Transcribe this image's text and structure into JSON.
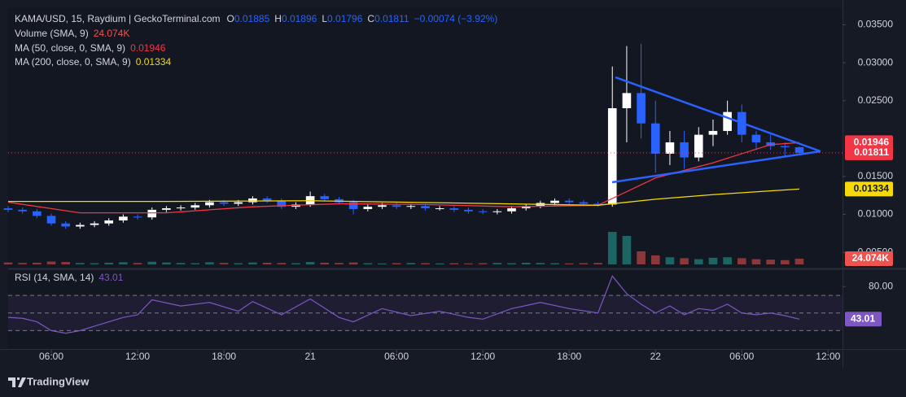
{
  "chart_data": [
    {
      "type": "candlestick",
      "title": "KAMA/USD, 15, Raydium | GeckoTerminal.com",
      "ohlc_letters": [
        "O",
        "H",
        "L",
        "C"
      ],
      "change": "−0.00074 (−3.92%)",
      "x": [
        3,
        4,
        5,
        6,
        7,
        8,
        9,
        10,
        11,
        12,
        13,
        14,
        15,
        16,
        17,
        18,
        19,
        20,
        21,
        22,
        23,
        24,
        25,
        26,
        27,
        28,
        29,
        30,
        31,
        32,
        33,
        34,
        35,
        36,
        37,
        38,
        39,
        40,
        41,
        42,
        43,
        44,
        45,
        46,
        47,
        48,
        49,
        50,
        51,
        52,
        53,
        54,
        55,
        56,
        57,
        58
      ],
      "open": [
        0.0108,
        0.0106,
        0.0104,
        0.0098,
        0.0088,
        0.0084,
        0.0086,
        0.0088,
        0.0092,
        0.0097,
        0.0096,
        0.0106,
        0.0108,
        0.0109,
        0.0112,
        0.0116,
        0.0114,
        0.0116,
        0.0121,
        0.0118,
        0.011,
        0.0113,
        0.0124,
        0.012,
        0.0116,
        0.0107,
        0.011,
        0.0112,
        0.011,
        0.0111,
        0.0108,
        0.0108,
        0.0106,
        0.0104,
        0.0103,
        0.0104,
        0.0108,
        0.0111,
        0.0115,
        0.0118,
        0.0116,
        0.0114,
        0.0113,
        0.024,
        0.026,
        0.022,
        0.018,
        0.0195,
        0.0175,
        0.0205,
        0.021,
        0.0235,
        0.0205,
        0.0195,
        0.019,
        0.01885
      ],
      "high": [
        0.0111,
        0.0109,
        0.0107,
        0.0101,
        0.0091,
        0.0089,
        0.0091,
        0.0095,
        0.01,
        0.01,
        0.0109,
        0.0111,
        0.0112,
        0.0115,
        0.0119,
        0.0119,
        0.0119,
        0.0124,
        0.0124,
        0.0121,
        0.0116,
        0.013,
        0.0127,
        0.0123,
        0.0119,
        0.0113,
        0.0115,
        0.0115,
        0.0114,
        0.0114,
        0.0111,
        0.0111,
        0.0109,
        0.0107,
        0.0107,
        0.0111,
        0.0114,
        0.0118,
        0.0121,
        0.0121,
        0.0119,
        0.0117,
        0.0295,
        0.0322,
        0.0325,
        0.025,
        0.021,
        0.021,
        0.0215,
        0.0225,
        0.025,
        0.0245,
        0.021,
        0.0205,
        0.0195,
        0.01896
      ],
      "low": [
        0.0103,
        0.0101,
        0.0095,
        0.0085,
        0.0081,
        0.0081,
        0.0083,
        0.0085,
        0.0089,
        0.0093,
        0.0093,
        0.0103,
        0.0105,
        0.0106,
        0.0109,
        0.0111,
        0.0111,
        0.0113,
        0.0115,
        0.0107,
        0.0107,
        0.011,
        0.0117,
        0.0113,
        0.01,
        0.0104,
        0.0107,
        0.0107,
        0.0107,
        0.0105,
        0.0105,
        0.0103,
        0.0101,
        0.01,
        0.01,
        0.0101,
        0.0105,
        0.0108,
        0.0112,
        0.0113,
        0.0111,
        0.011,
        0.011,
        0.0195,
        0.02,
        0.0155,
        0.0165,
        0.016,
        0.017,
        0.019,
        0.0205,
        0.0195,
        0.0185,
        0.0185,
        0.0177,
        0.01796
      ],
      "close": [
        0.0106,
        0.0104,
        0.0098,
        0.0088,
        0.0084,
        0.0086,
        0.0088,
        0.0092,
        0.0097,
        0.0096,
        0.0106,
        0.0108,
        0.0109,
        0.0112,
        0.0116,
        0.0114,
        0.0116,
        0.0121,
        0.0118,
        0.011,
        0.0113,
        0.0124,
        0.012,
        0.0116,
        0.0107,
        0.011,
        0.0112,
        0.011,
        0.0111,
        0.0108,
        0.0108,
        0.0106,
        0.0104,
        0.0103,
        0.0104,
        0.0108,
        0.0111,
        0.0115,
        0.0118,
        0.0116,
        0.0114,
        0.0113,
        0.024,
        0.026,
        0.022,
        0.018,
        0.0195,
        0.0175,
        0.0205,
        0.021,
        0.0235,
        0.0205,
        0.0195,
        0.019,
        0.01885,
        0.01811
      ],
      "up_color": "#ffffff",
      "down_color": "#2962ff",
      "xlim": [
        3,
        61
      ],
      "xticks": [
        {
          "value": 6,
          "label": "06:00"
        },
        {
          "value": 12,
          "label": "12:00"
        },
        {
          "value": 18,
          "label": "18:00"
        },
        {
          "value": 24,
          "label": "21"
        },
        {
          "value": 30,
          "label": "06:00"
        },
        {
          "value": 36,
          "label": "12:00"
        },
        {
          "value": 42,
          "label": "18:00"
        },
        {
          "value": 48,
          "label": "22"
        },
        {
          "value": 54,
          "label": "06:00"
        },
        {
          "value": 60,
          "label": "12:00"
        }
      ],
      "ylim": [
        0.0034,
        0.0372
      ],
      "yticks": [
        {
          "value": 0.035,
          "label": "0.03500"
        },
        {
          "value": 0.03,
          "label": "0.03000"
        },
        {
          "value": 0.025,
          "label": "0.02500"
        },
        {
          "value": 0.015,
          "label": "0.01500"
        },
        {
          "value": 0.01,
          "label": "0.01000"
        },
        {
          "value": 0.005,
          "label": "0.00500"
        }
      ],
      "volume": {
        "name": "Volume (SMA, 9)",
        "last_label": "24.074K",
        "ylim": [
          0,
          1080000
        ],
        "up_color": "#26a69a",
        "down_color": "#ef5350",
        "values": [
          8000,
          6000,
          7000,
          12000,
          10000,
          6000,
          5000,
          7000,
          9000,
          6000,
          11000,
          8000,
          6000,
          5000,
          9000,
          6000,
          5000,
          8000,
          7000,
          6000,
          5000,
          10000,
          7000,
          6000,
          8000,
          5000,
          4000,
          5000,
          6000,
          5000,
          4000,
          5000,
          4000,
          5000,
          6000,
          5000,
          7000,
          6000,
          5000,
          4000,
          5000,
          6000,
          137000,
          120000,
          55000,
          38000,
          30000,
          26000,
          22000,
          28000,
          30000,
          26000,
          22000,
          20000,
          18000,
          24074
        ]
      },
      "series": [
        {
          "name": "MA (50, close, 0, SMA, 9)",
          "color": "#f23645",
          "x": [
            3,
            8,
            14,
            20,
            26,
            32,
            38,
            44,
            46,
            48,
            50,
            52,
            54,
            56,
            58
          ],
          "values": [
            0.0116,
            0.0102,
            0.0102,
            0.011,
            0.0114,
            0.0113,
            0.011,
            0.0112,
            0.013,
            0.0148,
            0.0158,
            0.0168,
            0.018,
            0.0192,
            0.01946
          ]
        },
        {
          "name": "MA (200, close, 0, SMA, 9)",
          "color": "#f5d90a",
          "x": [
            3,
            14,
            24,
            34,
            44,
            48,
            52,
            56,
            58
          ],
          "values": [
            0.0117,
            0.0117,
            0.0118,
            0.0115,
            0.0112,
            0.012,
            0.0126,
            0.0131,
            0.01334
          ]
        }
      ]
    },
    {
      "type": "line",
      "name": "RSI (14, SMA, 14)",
      "color": "#7e57c2",
      "x": [
        3,
        4,
        5,
        6,
        7,
        8,
        9,
        10,
        11,
        12,
        13,
        15,
        17,
        19,
        20,
        22,
        24,
        26,
        27,
        29,
        31,
        33,
        35,
        36,
        38,
        40,
        42,
        44,
        45,
        46,
        47,
        48,
        49,
        50,
        51,
        52,
        53,
        54,
        55,
        56,
        57,
        58
      ],
      "values": [
        45,
        44,
        40,
        30,
        27,
        30,
        35,
        40,
        45,
        48,
        65,
        58,
        62,
        52,
        63,
        48,
        66,
        45,
        40,
        55,
        47,
        52,
        45,
        43,
        55,
        62,
        55,
        50,
        92,
        72,
        60,
        50,
        58,
        48,
        55,
        53,
        60,
        50,
        48,
        50,
        47,
        43.01
      ],
      "xlim": [
        3,
        61
      ],
      "ylim": [
        10,
        96
      ],
      "yticks": [
        {
          "value": 80,
          "label": "80.00"
        }
      ],
      "levels": [
        70,
        50,
        30
      ]
    }
  ],
  "footer": {
    "brand": "TradingView"
  }
}
